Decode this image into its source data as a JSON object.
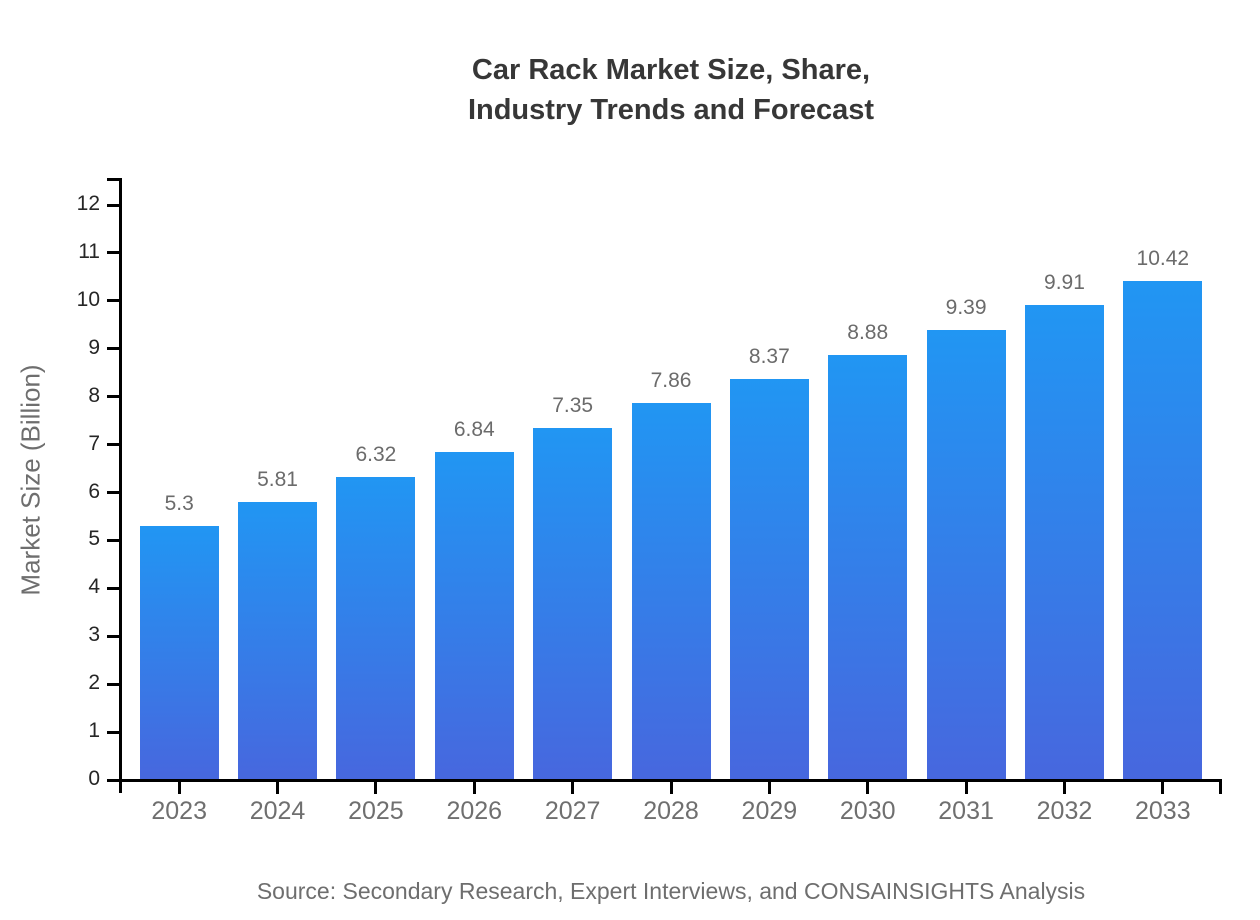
{
  "title": {
    "line1": "Car Rack Market Size, Share,",
    "line2": "Industry Trends and Forecast",
    "color": "#373737"
  },
  "source": {
    "text": "Source: Secondary Research, Expert Interviews, and CONSAINSIGHTS Analysis",
    "color": "#6e6e6e"
  },
  "chart_data": {
    "type": "bar",
    "title": "Car Rack Market Size, Share, Industry Trends and Forecast",
    "categories": [
      "2023",
      "2024",
      "2025",
      "2026",
      "2027",
      "2028",
      "2029",
      "2030",
      "2031",
      "2032",
      "2033"
    ],
    "values": [
      5.3,
      5.81,
      6.32,
      6.84,
      7.35,
      7.86,
      8.37,
      8.88,
      9.39,
      9.91,
      10.42
    ],
    "xlabel": "",
    "ylabel": "Market Size (Billion)",
    "ylim": [
      0,
      12.56
    ],
    "yticks": [
      0,
      1,
      2,
      3,
      4,
      5,
      6,
      7,
      8,
      9,
      10,
      11,
      12
    ],
    "grid": false,
    "legend": false,
    "data_labels_shown": true,
    "colors": {
      "bar_gradient_top": "#2196f3",
      "bar_gradient_bottom": "#4767de",
      "axis": "#000000",
      "ytick_label": "#262626",
      "xtick_label": "#6f6f6f",
      "data_label": "#6b6b6b",
      "ylabel_text": "#6e6e6e"
    }
  }
}
